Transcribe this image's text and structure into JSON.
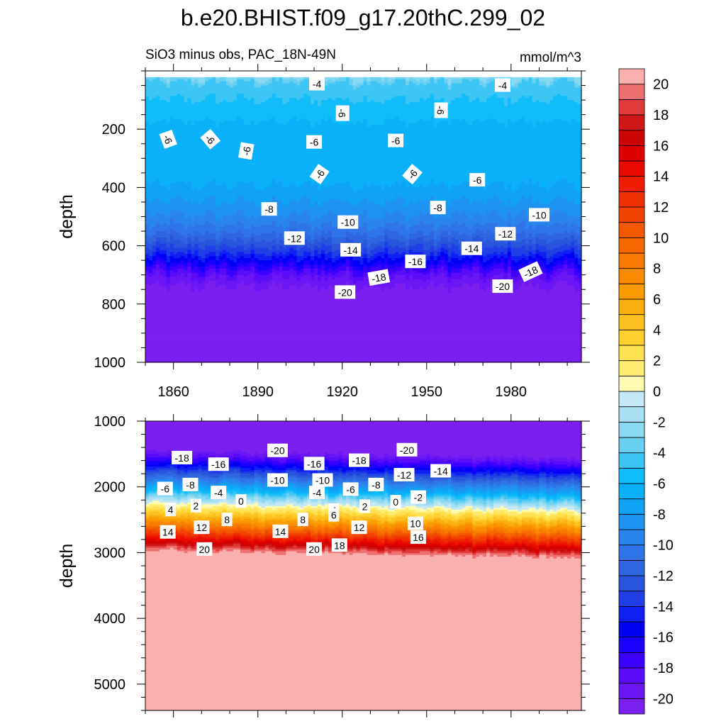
{
  "title": "b.e20.BHIST.f09_g17.20thC.299_02",
  "subtitle_left": "SiO3 minus obs, PAC_18N-49N",
  "subtitle_right": "mmol/m^3",
  "chart_data": {
    "type": "heatmap",
    "title": "b.e20.BHIST.f09_g17.20thC.299_02",
    "variable": "SiO3 minus obs, PAC_18N-49N",
    "units": "mmol/m^3",
    "xlim": [
      1850,
      2005
    ],
    "x_ticks": [
      1860,
      1890,
      1920,
      1950,
      1980
    ],
    "x_tick_labels": [
      "1860",
      "1890",
      "1920",
      "1950",
      "1980"
    ],
    "panels": [
      {
        "name": "upper",
        "ylabel": "depth",
        "ylim": [
          0,
          1000
        ],
        "y_ticks": [
          200,
          400,
          600,
          800,
          1000
        ],
        "y_tick_labels": [
          "200",
          "400",
          "600",
          "800",
          "1000"
        ],
        "data_top_depth": 20,
        "depth_profile": [
          [
            20,
            -2.5
          ],
          [
            40,
            -4
          ],
          [
            80,
            -4.7
          ],
          [
            130,
            -5.5
          ],
          [
            200,
            -6.3
          ],
          [
            300,
            -6.4
          ],
          [
            380,
            -6.8
          ],
          [
            420,
            -7.5
          ],
          [
            480,
            -8.6
          ],
          [
            530,
            -10
          ],
          [
            560,
            -11
          ],
          [
            600,
            -12.8
          ],
          [
            630,
            -14.2
          ],
          [
            650,
            -15.5
          ],
          [
            680,
            -17.5
          ],
          [
            700,
            -18.6
          ],
          [
            720,
            -19.5
          ],
          [
            760,
            -20.5
          ],
          [
            1000,
            -21
          ]
        ],
        "contour_labels": [
          {
            "text": "-4",
            "year": 1911,
            "depth": 45,
            "rot": 0
          },
          {
            "text": "-4",
            "year": 1977,
            "depth": 50,
            "rot": 0
          },
          {
            "text": "-6",
            "year": 1920,
            "depth": 145,
            "rot": 90
          },
          {
            "text": "-6",
            "year": 1955,
            "depth": 135,
            "rot": 90
          },
          {
            "text": "-6",
            "year": 1858,
            "depth": 235,
            "rot": 70
          },
          {
            "text": "-6",
            "year": 1873,
            "depth": 235,
            "rot": 50
          },
          {
            "text": "-6",
            "year": 1886,
            "depth": 275,
            "rot": -80
          },
          {
            "text": "-6",
            "year": 1910,
            "depth": 245,
            "rot": 0
          },
          {
            "text": "-6",
            "year": 1939,
            "depth": 240,
            "rot": 0
          },
          {
            "text": "-6",
            "year": 1912,
            "depth": 355,
            "rot": -55
          },
          {
            "text": "-6",
            "year": 1945,
            "depth": 355,
            "rot": -50
          },
          {
            "text": "-6",
            "year": 1968,
            "depth": 375,
            "rot": 0
          },
          {
            "text": "-8",
            "year": 1894,
            "depth": 475,
            "rot": 0
          },
          {
            "text": "-8",
            "year": 1954,
            "depth": 470,
            "rot": 0
          },
          {
            "text": "-10",
            "year": 1922,
            "depth": 520,
            "rot": 0
          },
          {
            "text": "-10",
            "year": 1990,
            "depth": 495,
            "rot": 0
          },
          {
            "text": "-12",
            "year": 1903,
            "depth": 575,
            "rot": 0
          },
          {
            "text": "-12",
            "year": 1978,
            "depth": 560,
            "rot": 0
          },
          {
            "text": "-14",
            "year": 1923,
            "depth": 615,
            "rot": 0
          },
          {
            "text": "-14",
            "year": 1966,
            "depth": 610,
            "rot": 0
          },
          {
            "text": "-16",
            "year": 1946,
            "depth": 655,
            "rot": 0
          },
          {
            "text": "-18",
            "year": 1933,
            "depth": 710,
            "rot": -10
          },
          {
            "text": "-18",
            "year": 1987,
            "depth": 690,
            "rot": -25
          },
          {
            "text": "-20",
            "year": 1921,
            "depth": 760,
            "rot": 0
          },
          {
            "text": "-20",
            "year": 1977,
            "depth": 740,
            "rot": 0
          }
        ]
      },
      {
        "name": "lower",
        "ylabel": "depth",
        "ylim": [
          1000,
          5400
        ],
        "y_ticks": [
          1000,
          2000,
          3000,
          4000,
          5000
        ],
        "y_tick_labels": [
          "1000",
          "2000",
          "3000",
          "4000",
          "5000"
        ],
        "depth_profile": [
          [
            1000,
            -21
          ],
          [
            1400,
            -21
          ],
          [
            1500,
            -19
          ],
          [
            1600,
            -17
          ],
          [
            1700,
            -14.5
          ],
          [
            1800,
            -12
          ],
          [
            1900,
            -9.5
          ],
          [
            2000,
            -7
          ],
          [
            2100,
            -4
          ],
          [
            2200,
            -1
          ],
          [
            2300,
            1.5
          ],
          [
            2400,
            4
          ],
          [
            2500,
            6.5
          ],
          [
            2600,
            9
          ],
          [
            2700,
            12
          ],
          [
            2800,
            15
          ],
          [
            2900,
            18.5
          ],
          [
            2980,
            20.5
          ],
          [
            3050,
            21
          ],
          [
            5400,
            21
          ]
        ],
        "contour_labels": [
          {
            "text": "-18",
            "year": 1863,
            "depth": 1560,
            "rot": 0
          },
          {
            "text": "-16",
            "year": 1876,
            "depth": 1660,
            "rot": 0
          },
          {
            "text": "-20",
            "year": 1897,
            "depth": 1450,
            "rot": 0
          },
          {
            "text": "-16",
            "year": 1910,
            "depth": 1650,
            "rot": 0
          },
          {
            "text": "-18",
            "year": 1926,
            "depth": 1600,
            "rot": 0
          },
          {
            "text": "-20",
            "year": 1943,
            "depth": 1440,
            "rot": 0
          },
          {
            "text": "-14",
            "year": 1955,
            "depth": 1760,
            "rot": 0
          },
          {
            "text": "-12",
            "year": 1942,
            "depth": 1820,
            "rot": 0
          },
          {
            "text": "-10",
            "year": 1897,
            "depth": 1900,
            "rot": 0
          },
          {
            "text": "-10",
            "year": 1913,
            "depth": 1900,
            "rot": 0
          },
          {
            "text": "-6",
            "year": 1857,
            "depth": 2030,
            "rot": 0
          },
          {
            "text": "-8",
            "year": 1866,
            "depth": 1970,
            "rot": 0
          },
          {
            "text": "-4",
            "year": 1876,
            "depth": 2090,
            "rot": 0
          },
          {
            "text": "-4",
            "year": 1911,
            "depth": 2090,
            "rot": 0
          },
          {
            "text": "-6",
            "year": 1923,
            "depth": 2040,
            "rot": 0
          },
          {
            "text": "-8",
            "year": 1932,
            "depth": 1970,
            "rot": 0
          },
          {
            "text": "-2",
            "year": 1947,
            "depth": 2160,
            "rot": 0
          },
          {
            "text": "0",
            "year": 1884,
            "depth": 2220,
            "rot": 0
          },
          {
            "text": "0",
            "year": 1939,
            "depth": 2230,
            "rot": 0
          },
          {
            "text": "4",
            "year": 1859,
            "depth": 2350,
            "rot": 0
          },
          {
            "text": "2",
            "year": 1868,
            "depth": 2290,
            "rot": 0
          },
          {
            "text": "2",
            "year": 1928,
            "depth": 2300,
            "rot": 0
          },
          {
            "text": "4",
            "year": 1917,
            "depth": 2360,
            "rot": 0
          },
          {
            "text": "8",
            "year": 1879,
            "depth": 2500,
            "rot": 0
          },
          {
            "text": "8",
            "year": 1906,
            "depth": 2500,
            "rot": 0
          },
          {
            "text": "6",
            "year": 1917,
            "depth": 2430,
            "rot": 0
          },
          {
            "text": "10",
            "year": 1946,
            "depth": 2560,
            "rot": 0
          },
          {
            "text": "12",
            "year": 1870,
            "depth": 2620,
            "rot": 0
          },
          {
            "text": "12",
            "year": 1926,
            "depth": 2620,
            "rot": 0
          },
          {
            "text": "14",
            "year": 1858,
            "depth": 2690,
            "rot": 0
          },
          {
            "text": "14",
            "year": 1898,
            "depth": 2680,
            "rot": 0
          },
          {
            "text": "16",
            "year": 1947,
            "depth": 2770,
            "rot": 0
          },
          {
            "text": "20",
            "year": 1871,
            "depth": 2950,
            "rot": 0
          },
          {
            "text": "20",
            "year": 1910,
            "depth": 2950,
            "rot": 0
          },
          {
            "text": "18",
            "year": 1919,
            "depth": 2890,
            "rot": 0
          }
        ]
      }
    ],
    "colorbar": {
      "levels": [
        -21,
        -20,
        -19,
        -18,
        -17,
        -16,
        -15,
        -14,
        -13,
        -12,
        -11,
        -10,
        -9,
        -8,
        -7,
        -6,
        -5,
        -4,
        -3,
        -2,
        -1,
        0,
        1,
        2,
        3,
        4,
        5,
        6,
        7,
        8,
        9,
        10,
        11,
        12,
        13,
        14,
        15,
        16,
        17,
        18,
        19,
        20,
        21
      ],
      "tick_values": [
        -20,
        -18,
        -16,
        -14,
        -12,
        -10,
        -8,
        -6,
        -4,
        -2,
        0,
        2,
        4,
        6,
        8,
        10,
        12,
        14,
        16,
        18,
        20
      ],
      "tick_labels": [
        "-20",
        "-18",
        "-16",
        "-14",
        "-12",
        "-10",
        "-8",
        "-6",
        "-4",
        "-2",
        "0",
        "2",
        "4",
        "6",
        "8",
        "10",
        "12",
        "14",
        "16",
        "18",
        "20"
      ],
      "colors": [
        "#7a1ff0",
        "#6a16f5",
        "#5a0cf8",
        "#3c00ff",
        "#1a00ff",
        "#0000f5",
        "#1020f2",
        "#2040e5",
        "#2955dd",
        "#2f66e0",
        "#2f74e8",
        "#2a84ee",
        "#1e93f2",
        "#10a2f5",
        "#0ab0f8",
        "#10bdfa",
        "#3cc5f5",
        "#6ad0f2",
        "#8ad9f2",
        "#a8e0f2",
        "#c4e8f5",
        "#fffbb0",
        "#ffeb70",
        "#ffe050",
        "#ffd030",
        "#fcc020",
        "#faae10",
        "#fa9c00",
        "#fa8a00",
        "#f97a00",
        "#f76900",
        "#f45800",
        "#f24400",
        "#f03000",
        "#ee1c00",
        "#ea0a00",
        "#dc0000",
        "#cc0404",
        "#d01818",
        "#e23a3a",
        "#ee7070",
        "#fbb0b0"
      ]
    }
  }
}
